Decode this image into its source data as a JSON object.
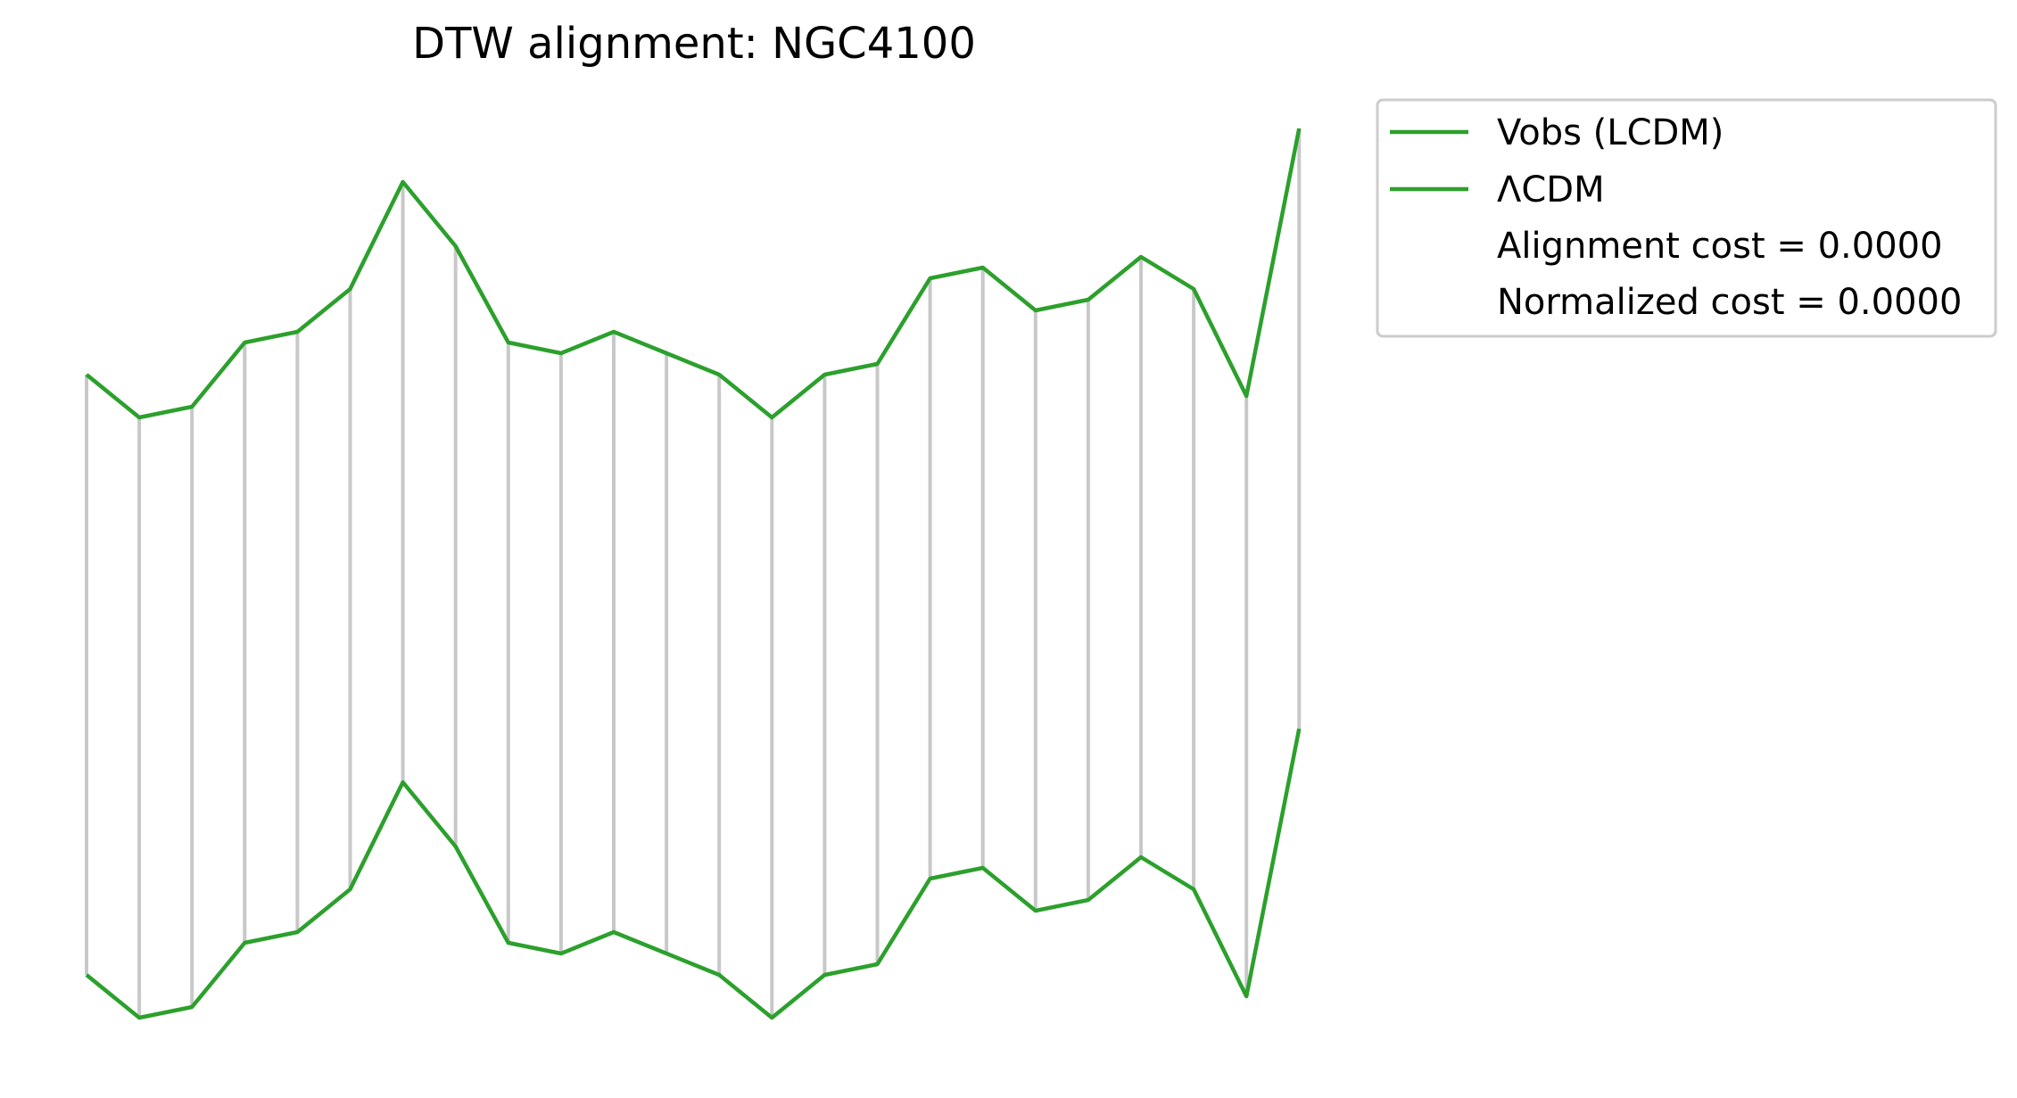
{
  "chart_data": {
    "type": "line",
    "title": "DTW alignment: NGC4100",
    "colors": {
      "series": "#2ca02c",
      "connector": "#c8c8c8"
    },
    "grid": false,
    "axes_visible": false,
    "legend_placement": "outside right, top",
    "x": [
      0,
      1,
      2,
      3,
      4,
      5,
      6,
      7,
      8,
      9,
      10,
      11,
      12,
      13,
      14,
      15,
      16,
      17,
      18,
      19,
      20,
      21,
      22,
      23
    ],
    "series": [
      {
        "name": "Vobs (LCDM)",
        "values": [
          0.41,
          0.37,
          0.38,
          0.44,
          0.45,
          0.49,
          0.59,
          0.53,
          0.44,
          0.43,
          0.45,
          0.43,
          0.41,
          0.37,
          0.41,
          0.42,
          0.5,
          0.51,
          0.47,
          0.48,
          0.52,
          0.49,
          0.39,
          0.64
        ]
      },
      {
        "name": "ΛCDM",
        "values": [
          0.41,
          0.37,
          0.38,
          0.44,
          0.45,
          0.49,
          0.59,
          0.53,
          0.44,
          0.43,
          0.45,
          0.43,
          0.41,
          0.37,
          0.41,
          0.42,
          0.5,
          0.51,
          0.47,
          0.48,
          0.52,
          0.49,
          0.39,
          0.64
        ]
      }
    ],
    "alignment_path": [
      [
        0,
        0
      ],
      [
        1,
        1
      ],
      [
        2,
        2
      ],
      [
        3,
        3
      ],
      [
        4,
        4
      ],
      [
        5,
        5
      ],
      [
        6,
        6
      ],
      [
        7,
        7
      ],
      [
        8,
        8
      ],
      [
        9,
        9
      ],
      [
        10,
        10
      ],
      [
        11,
        11
      ],
      [
        12,
        12
      ],
      [
        13,
        13
      ],
      [
        14,
        14
      ],
      [
        15,
        15
      ],
      [
        16,
        16
      ],
      [
        17,
        17
      ],
      [
        18,
        18
      ],
      [
        19,
        19
      ],
      [
        20,
        20
      ],
      [
        21,
        21
      ],
      [
        22,
        22
      ],
      [
        23,
        23
      ]
    ],
    "legend_entries": [
      "Vobs (LCDM)",
      "ΛCDM",
      "Alignment cost = 0.0000",
      "Normalized cost = 0.0000"
    ]
  }
}
